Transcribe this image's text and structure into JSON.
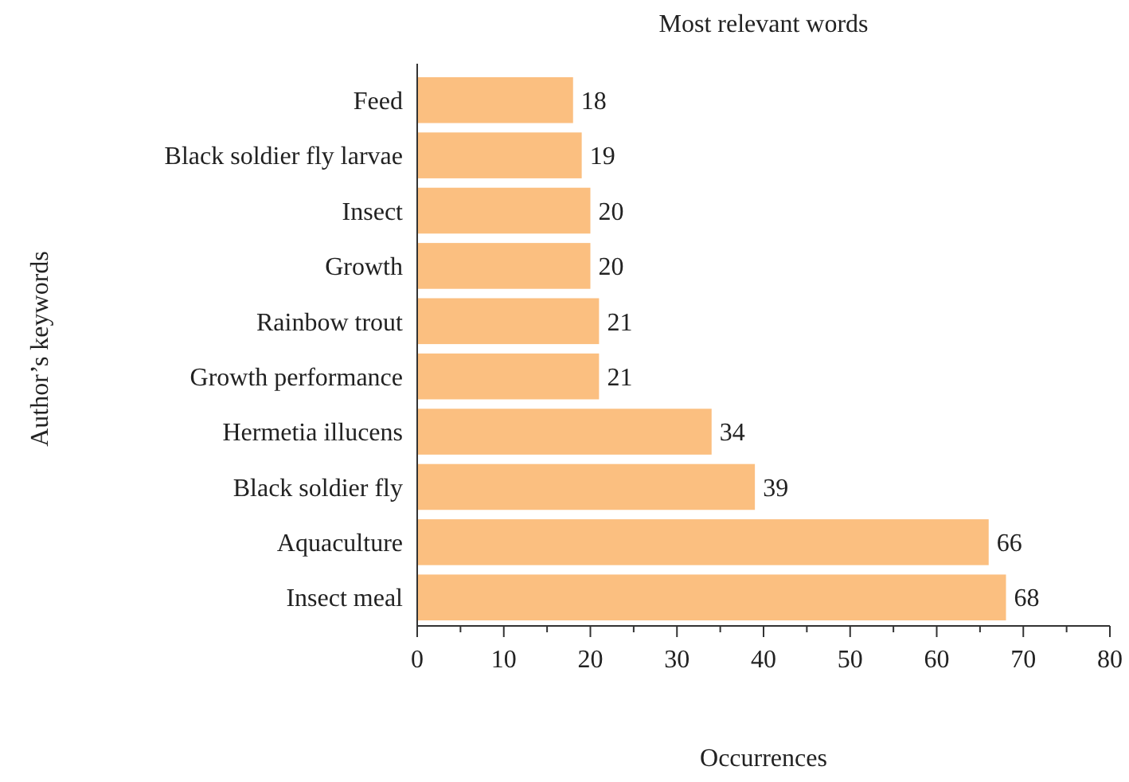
{
  "chart_data": {
    "type": "bar",
    "orientation": "horizontal",
    "title": "Most relevant words",
    "xlabel": "Occurrences",
    "ylabel": "Author’s keywords",
    "categories": [
      "Feed",
      "Black soldier fly larvae",
      "Insect",
      "Growth",
      "Rainbow trout",
      "Growth performance",
      "Hermetia illucens",
      "Black soldier fly",
      "Aquaculture",
      "Insect meal"
    ],
    "values": [
      18,
      19,
      20,
      20,
      21,
      21,
      34,
      39,
      66,
      68
    ],
    "color": "#fbbf80",
    "data_labels": true,
    "xlim": [
      0,
      80
    ],
    "xticks": [
      0,
      {
        "value": 5,
        "label": null
      },
      10,
      {
        "value": 15,
        "label": null
      },
      20,
      {
        "value": 25,
        "label": null
      },
      30,
      {
        "value": 35,
        "label": null
      },
      40,
      {
        "value": 45,
        "label": null
      },
      50,
      {
        "value": 55,
        "label": null
      },
      60,
      {
        "value": 65,
        "label": null
      },
      70,
      {
        "value": 75,
        "label": null
      },
      80
    ]
  }
}
